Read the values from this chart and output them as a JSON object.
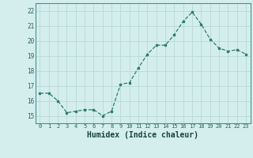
{
  "x": [
    0,
    1,
    2,
    3,
    4,
    5,
    6,
    7,
    8,
    9,
    10,
    11,
    12,
    13,
    14,
    15,
    16,
    17,
    18,
    19,
    20,
    21,
    22,
    23
  ],
  "y": [
    16.5,
    16.5,
    16.0,
    15.2,
    15.3,
    15.4,
    15.4,
    15.0,
    15.3,
    17.1,
    17.2,
    18.2,
    19.1,
    19.7,
    19.7,
    20.4,
    21.3,
    21.9,
    21.1,
    20.1,
    19.5,
    19.3,
    19.4,
    19.1
  ],
  "line_color": "#2e7d6e",
  "marker": "s",
  "marker_size": 2,
  "bg_color": "#d4eeee",
  "grid_color": "#b8d8d8",
  "xlabel": "Humidex (Indice chaleur)",
  "xlim": [
    -0.5,
    23.5
  ],
  "ylim": [
    14.5,
    22.5
  ],
  "yticks": [
    15,
    16,
    17,
    18,
    19,
    20,
    21,
    22
  ],
  "xticks": [
    0,
    1,
    2,
    3,
    4,
    5,
    6,
    7,
    8,
    9,
    10,
    11,
    12,
    13,
    14,
    15,
    16,
    17,
    18,
    19,
    20,
    21,
    22,
    23
  ]
}
